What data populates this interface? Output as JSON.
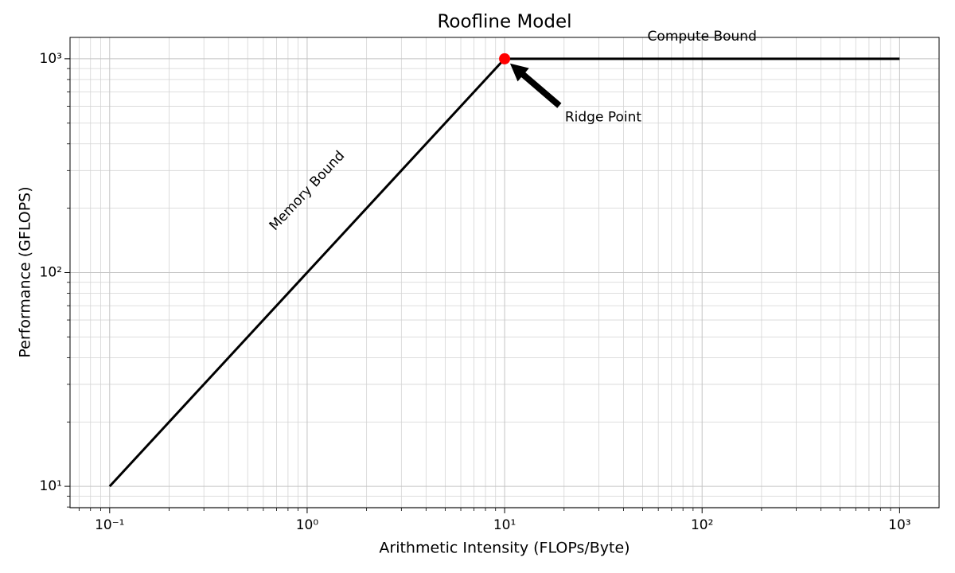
{
  "chart_data": {
    "type": "line",
    "title": "Roofline Model",
    "x_label": "Arithmetic Intensity (FLOPs/Byte)",
    "y_label": "Performance (GFLOPS)",
    "x_log": true,
    "y_log": true,
    "grid": true,
    "xlim": [
      0.063,
      1585
    ],
    "ylim": [
      7.94,
      1259
    ],
    "xticks": [
      {
        "value": 0.1,
        "label": "10⁻¹"
      },
      {
        "value": 1,
        "label": "10⁰"
      },
      {
        "value": 10,
        "label": "10¹"
      },
      {
        "value": 100,
        "label": "10²"
      },
      {
        "value": 1000,
        "label": "10³"
      }
    ],
    "yticks": [
      {
        "value": 10,
        "label": "10¹"
      },
      {
        "value": 100,
        "label": "10²"
      },
      {
        "value": 1000,
        "label": "10³"
      }
    ],
    "xminor_ticks": [
      0.07,
      0.08,
      0.09,
      0.2,
      0.3,
      0.4,
      0.5,
      0.6,
      0.7,
      0.8,
      0.9,
      2,
      3,
      4,
      5,
      6,
      7,
      8,
      9,
      20,
      30,
      40,
      50,
      60,
      70,
      80,
      90,
      200,
      300,
      400,
      500,
      600,
      700,
      800,
      900
    ],
    "yminor_ticks": [
      8,
      9,
      20,
      30,
      40,
      50,
      60,
      70,
      80,
      90,
      200,
      300,
      400,
      500,
      600,
      700,
      800,
      900
    ],
    "series": [
      {
        "kind": "line",
        "color": "#000000",
        "x": [
          0.1,
          10,
          1000
        ],
        "values": [
          10,
          1000,
          1000
        ]
      },
      {
        "kind": "scatter",
        "color": "#ff0000",
        "x": [
          10
        ],
        "values": [
          1000
        ]
      }
    ],
    "annotations": [
      {
        "text": "Memory Bound",
        "x": 1,
        "y": 241
      },
      {
        "text": "Compute Bound",
        "x": 100,
        "y": 1270
      },
      {
        "text": "Ridge Point",
        "x": 20.2,
        "y": 531,
        "arrow_to": [
          10,
          1000
        ]
      }
    ]
  }
}
